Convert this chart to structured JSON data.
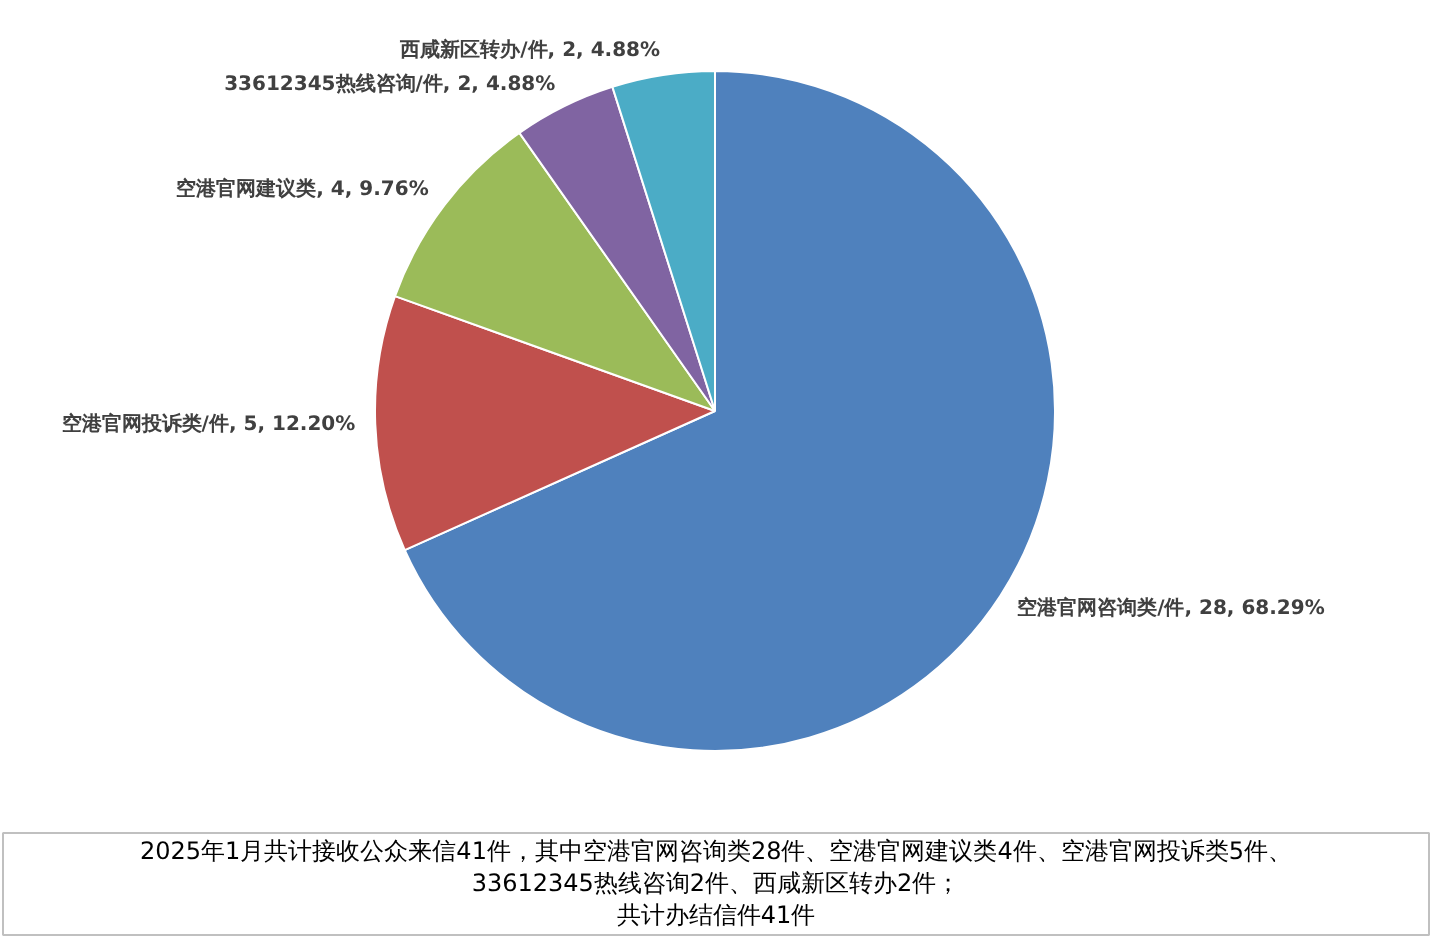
{
  "chart_data": {
    "type": "pie",
    "categories": [
      "空港官网咨询类/件",
      "空港官网投诉类/件",
      "空港官网建议类",
      "33612345热线咨询/件",
      "西咸新区转办/件"
    ],
    "values": [
      28,
      5,
      4,
      2,
      2
    ],
    "colors": [
      "#4f81bd",
      "#c0504d",
      "#9bbb59",
      "#8064a2",
      "#4bacc6"
    ],
    "value_labels": [
      "28, 68.29%",
      "5, 12.20%",
      "4, 9.76%",
      "2, 4.88%",
      "2, 4.88%"
    ],
    "data_labels": true,
    "annotations": [
      "2025年1月共计接收公众来信41件，其中空港官网咨询类28件、空港官网建议类4件、空港官网投诉类5件、33612345热线咨询2件、西咸新区转办2件；",
      "共计办结信件41件"
    ]
  }
}
